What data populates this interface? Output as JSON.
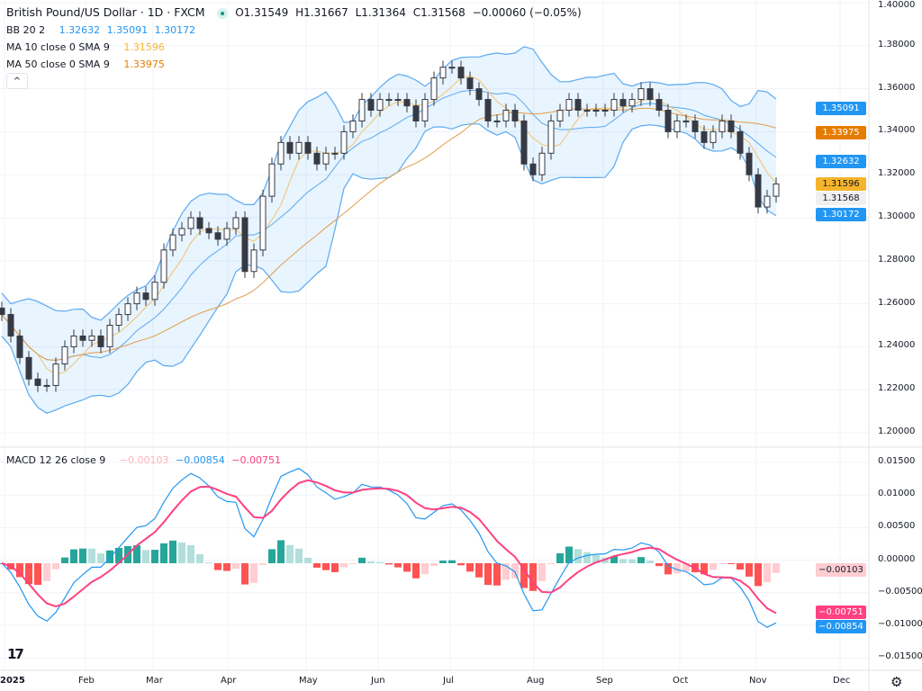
{
  "header": {
    "title": "British Pound/US Dollar · 1D · FXCM",
    "open": "O1.31549",
    "high": "H1.31667",
    "low": "L1.31364",
    "close": "C1.31568",
    "change": "−0.00060 (−0.05%)"
  },
  "indicators": {
    "bb": {
      "label": "BB 20 2",
      "basis": "1.32632",
      "upper": "1.35091",
      "lower": "1.30172"
    },
    "ma10": {
      "label": "MA 10 close 0 SMA 9",
      "value": "1.31596"
    },
    "ma50": {
      "label": "MA 50 close 0 SMA 9",
      "value": "1.33975"
    },
    "macd": {
      "label": "MACD 12 26 close 9",
      "hist": "−0.00103",
      "macd": "−0.00854",
      "signal": "−0.00751"
    }
  },
  "price_tags": [
    {
      "text": "1.35091",
      "value": 1.35091,
      "bg": "#2196f3",
      "fg": "#ffffff"
    },
    {
      "text": "1.33975",
      "value": 1.33975,
      "bg": "#e57c00",
      "fg": "#ffffff"
    },
    {
      "text": "1.32632",
      "value": 1.32632,
      "bg": "#2196f3",
      "fg": "#ffffff"
    },
    {
      "text": "1.31596",
      "value": 1.31596,
      "bg": "#f6b42a",
      "fg": "#131722"
    },
    {
      "text": "1.31568",
      "value": 1.31568,
      "bg": "#f0f0f0",
      "fg": "#131722"
    },
    {
      "text": "1.30172",
      "value": 1.30172,
      "bg": "#2196f3",
      "fg": "#ffffff"
    }
  ],
  "macd_tags": [
    {
      "text": "−0.00103",
      "value": -0.00103,
      "bg": "#ffcdd2",
      "fg": "#131722"
    },
    {
      "text": "−0.00751",
      "value": -0.00751,
      "bg": "#ff4081",
      "fg": "#ffffff"
    },
    {
      "text": "−0.00854",
      "value": -0.00854,
      "bg": "#2196f3",
      "fg": "#ffffff"
    }
  ],
  "colors": {
    "bb_line": "#5aa9f0",
    "bb_fill": "rgba(33,150,243,0.10)",
    "ma10": "#f2c46d",
    "ma50": "#e39b4a",
    "macd": "#2196f3",
    "signal": "#ff4081",
    "hist_up_strong": "#26a69a",
    "hist_up_weak": "#b2dfdb",
    "hist_down_strong": "#ff5252",
    "hist_down_weak": "#ffcdd2",
    "candle": "#363a45"
  },
  "chart_data": [
    {
      "type": "candlestick",
      "title": "British Pound/US Dollar · 1D · FXCM",
      "ylim": [
        1.2,
        1.4
      ],
      "y_ticks": [
        "1.40000",
        "1.38000",
        "1.36000",
        "1.34000",
        "1.32000",
        "1.30000",
        "1.28000",
        "1.26000",
        "1.24000",
        "1.22000",
        "1.20000"
      ],
      "x_ticks": [
        "2025",
        "Feb",
        "Mar",
        "Apr",
        "May",
        "Jun",
        "Jul",
        "Aug",
        "Sep",
        "Oct",
        "Nov",
        "Dec"
      ],
      "grid": true,
      "approx_closes_every_2_trading_days": [
        1.255,
        1.245,
        1.235,
        1.225,
        1.222,
        1.222,
        1.232,
        1.24,
        1.245,
        1.243,
        1.245,
        1.24,
        1.25,
        1.255,
        1.26,
        1.265,
        1.262,
        1.27,
        1.285,
        1.292,
        1.295,
        1.3,
        1.295,
        1.293,
        1.29,
        1.295,
        1.3,
        1.275,
        1.285,
        1.31,
        1.325,
        1.335,
        1.33,
        1.335,
        1.33,
        1.325,
        1.33,
        1.33,
        1.34,
        1.345,
        1.355,
        1.35,
        1.355,
        1.355,
        1.355,
        1.352,
        1.345,
        1.355,
        1.365,
        1.37,
        1.37,
        1.365,
        1.36,
        1.355,
        1.345,
        1.345,
        1.35,
        1.345,
        1.325,
        1.32,
        1.33,
        1.345,
        1.35,
        1.355,
        1.35,
        1.35,
        1.35,
        1.35,
        1.355,
        1.352,
        1.355,
        1.36,
        1.355,
        1.35,
        1.34,
        1.345,
        1.345,
        1.34,
        1.335,
        1.34,
        1.345,
        1.34,
        1.33,
        1.32,
        1.305,
        1.31,
        1.3157
      ],
      "series": [
        {
          "name": "BB 20 2"
        },
        {
          "name": "MA 10 close 0 SMA 9"
        },
        {
          "name": "MA 50 close 0 SMA 9"
        }
      ]
    },
    {
      "type": "macd",
      "title": "MACD 12 26 close 9",
      "ylim": [
        -0.015,
        0.015
      ],
      "y_ticks": [
        "0.01500",
        "0.01000",
        "0.00500",
        "0.00000",
        "−0.00500",
        "−0.01000",
        "−0.01500"
      ],
      "last": {
        "histogram": -0.00103,
        "macd": -0.00854,
        "signal": -0.00751
      }
    }
  ]
}
